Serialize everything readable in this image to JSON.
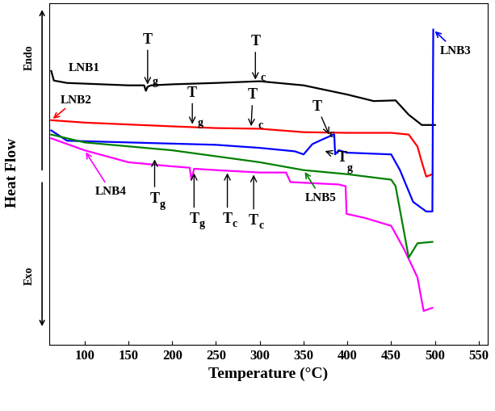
{
  "chart_data": {
    "type": "line",
    "x_label": "Temperature (°C)",
    "y_label": "Heat Flow",
    "y_direction_labels": [
      "Endo",
      "Exo"
    ],
    "xlim": [
      60,
      560
    ],
    "ylim": [
      0,
      100
    ],
    "xticks": [
      100,
      150,
      200,
      250,
      300,
      350,
      400,
      450,
      500,
      550
    ],
    "tick_labels": "x",
    "grid": false,
    "series": [
      {
        "name": "LNB1",
        "color": "#000000",
        "x": [
          62,
          65,
          80,
          100,
          150,
          168,
          170,
          172,
          176,
          200,
          250,
          300,
          350,
          400,
          430,
          455,
          470,
          485,
          500
        ],
        "values": [
          80.2,
          77.4,
          76.7,
          76.5,
          76.0,
          76.0,
          74.4,
          75.6,
          76.0,
          76.3,
          76.7,
          77.2,
          76.0,
          73.3,
          71.4,
          71.6,
          67.4,
          64.4,
          64.4
        ]
      },
      {
        "name": "LNB2",
        "color": "#ff0000",
        "x": [
          62,
          100,
          200,
          250,
          300,
          350,
          400,
          450,
          470,
          480,
          485,
          490,
          497
        ],
        "values": [
          65.8,
          65.1,
          64.0,
          63.5,
          63.3,
          62.3,
          62.1,
          62.1,
          61.6,
          58.1,
          53.5,
          49.3,
          50.0
        ]
      },
      {
        "name": "LNB3",
        "color": "#0000ff",
        "x": [
          62,
          80,
          150,
          250,
          300,
          340,
          350,
          360,
          370,
          378,
          384,
          385,
          386,
          390,
          400,
          450,
          460,
          475,
          490,
          497,
          498
        ],
        "values": [
          62.8,
          59.8,
          59.3,
          58.6,
          57.7,
          56.7,
          55.8,
          58.8,
          60.0,
          60.9,
          61.6,
          61.6,
          55.8,
          57.0,
          56.3,
          55.8,
          51.2,
          41.9,
          39.1,
          39.1,
          92.3
        ]
      },
      {
        "name": "LNB4",
        "color": "#ff00ff",
        "x": [
          62,
          100,
          150,
          200,
          220,
          222,
          225,
          250,
          300,
          330,
          335,
          390,
          398,
          399,
          420,
          450,
          465,
          480,
          487,
          497
        ],
        "values": [
          60.5,
          57.0,
          53.5,
          52.3,
          51.9,
          48.4,
          51.6,
          51.2,
          50.5,
          50.5,
          47.7,
          47.0,
          46.5,
          38.4,
          37.2,
          34.9,
          27.9,
          19.8,
          10.0,
          10.9
        ]
      },
      {
        "name": "LNB5",
        "color": "#008000",
        "x": [
          62,
          100,
          200,
          300,
          350,
          400,
          450,
          455,
          465,
          470,
          480,
          497
        ],
        "values": [
          61.6,
          59.3,
          57.0,
          53.5,
          51.2,
          50.0,
          48.4,
          46.5,
          32.6,
          25.6,
          29.8,
          30.2
        ]
      }
    ],
    "annotations": [
      {
        "text": "Tg",
        "x": 172,
        "y": 75.6
      },
      {
        "text": "Tc",
        "x": 295,
        "y": 77.0
      },
      {
        "text": "Tg",
        "x": 223,
        "y": 64.0
      },
      {
        "text": "Tc",
        "x": 290,
        "y": 63.4
      },
      {
        "text": "Tc",
        "x": 380,
        "y": 61.0
      },
      {
        "text": "Tg",
        "x": 372,
        "y": 57.0
      },
      {
        "text": "Tg",
        "x": 180,
        "y": 55.0
      },
      {
        "text": "Tg",
        "x": 225,
        "y": 51.0
      },
      {
        "text": "Tc",
        "x": 263,
        "y": 51.0
      },
      {
        "text": "Tc",
        "x": 293,
        "y": 50.5
      }
    ]
  }
}
